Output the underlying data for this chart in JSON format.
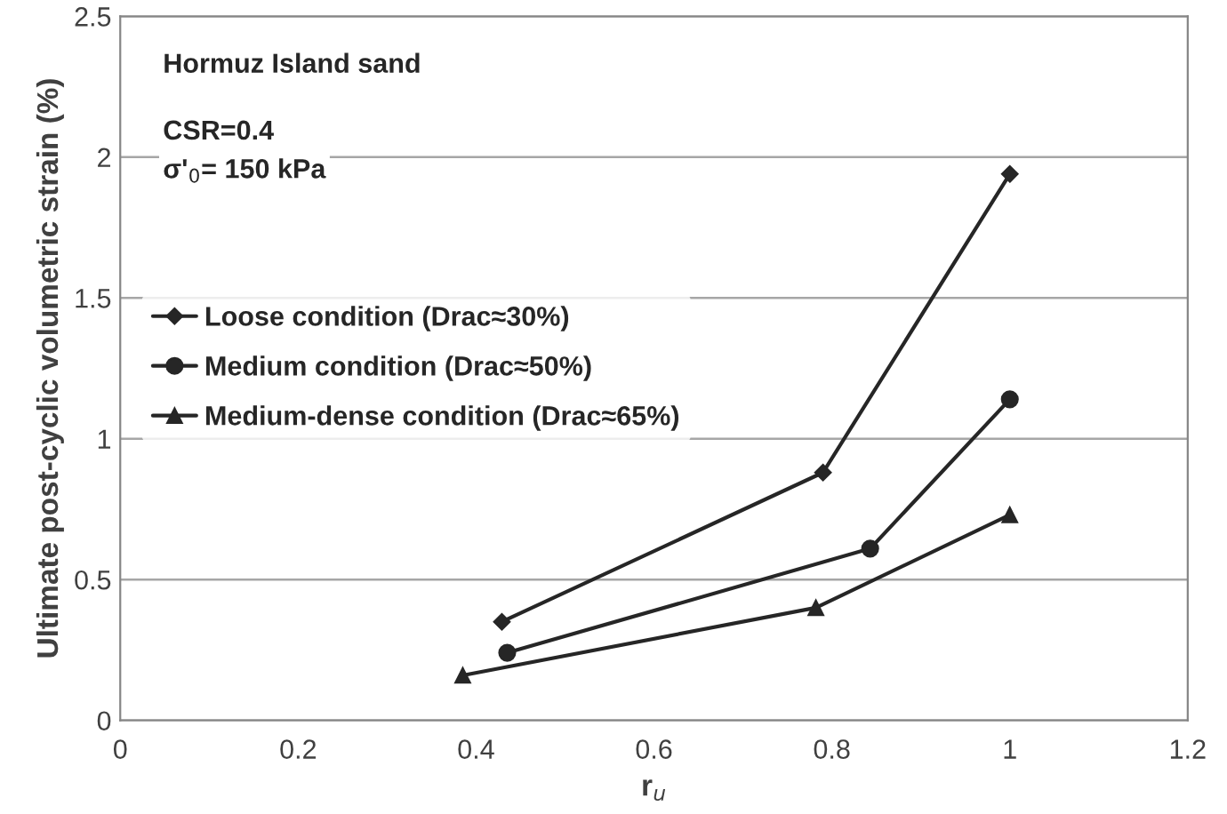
{
  "chart_data": {
    "type": "line",
    "xlabel": "r$_{u}$",
    "ylabel": "Ultimate post-cyclic volumetric strain (%)",
    "annotations": [
      "Hormuz Island sand",
      "CSR=0.4",
      "σ'$_{0}$= 150 kPa"
    ],
    "series": [
      {
        "name": "Loose condition (Drac≈30%)",
        "color": "#262626",
        "marker": "diamond",
        "x": [
          0.429,
          0.79,
          1.0
        ],
        "values": [
          0.35,
          0.88,
          1.94
        ]
      },
      {
        "name": "Medium condition (Drac≈50%)",
        "color": "#262626",
        "marker": "circle",
        "x": [
          0.435,
          0.843,
          1.0
        ],
        "values": [
          0.24,
          0.61,
          1.14
        ]
      },
      {
        "name": "Medium-dense condition (Drac≈65%)",
        "color": "#262626",
        "marker": "triangle",
        "x": [
          0.385,
          0.782,
          1.0
        ],
        "values": [
          0.16,
          0.4,
          0.73
        ]
      }
    ],
    "xlim": [
      0,
      1.2
    ],
    "xticks": [
      0,
      0.2,
      0.4,
      0.6,
      0.8,
      1,
      1.2
    ],
    "ylim": [
      0,
      2.5
    ],
    "yticks": [
      0,
      0.5,
      1,
      1.5,
      2,
      2.5
    ],
    "grid": "y",
    "legend": "center left",
    "line_style": "solid"
  }
}
